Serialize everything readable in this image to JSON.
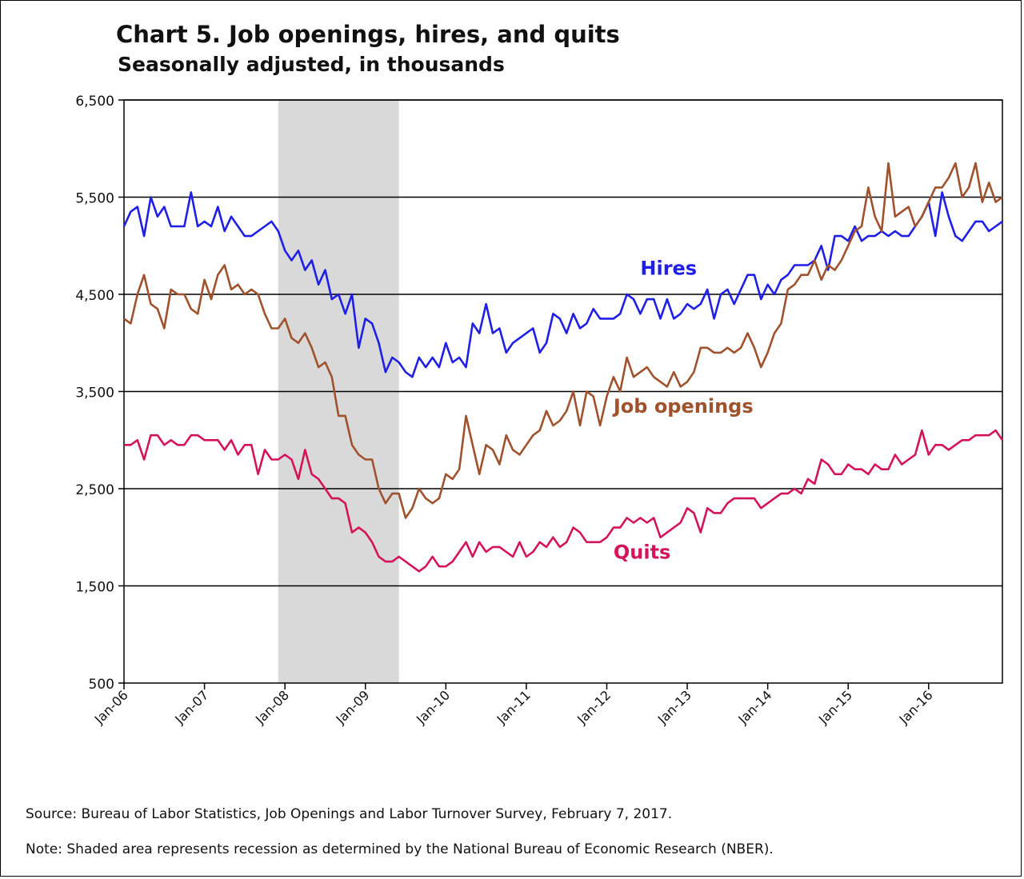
{
  "chart_data": {
    "type": "line",
    "title": "Chart 5. Job openings, hires, and quits",
    "subtitle": "Seasonally adjusted, in thousands",
    "xlabel": "",
    "ylabel": "",
    "x_start": "2006-01",
    "x_frequency": "monthly",
    "x_end": "2016-12",
    "x_tick_labels": [
      "Jan-06",
      "Jan-07",
      "Jan-08",
      "Jan-09",
      "Jan-10",
      "Jan-11",
      "Jan-12",
      "Jan-13",
      "Jan-14",
      "Jan-15",
      "Jan-16"
    ],
    "ylim": [
      500,
      6500
    ],
    "y_ticks": [
      500,
      1500,
      2500,
      3500,
      4500,
      5500,
      6500
    ],
    "y_tick_labels": [
      "500",
      "1,500",
      "2,500",
      "3,500",
      "4,500",
      "5,500",
      "6,500"
    ],
    "grid": "horizontal",
    "recession_shading": {
      "start": "2007-12",
      "end": "2009-06",
      "color": "#d9d9d9"
    },
    "series": [
      {
        "name": "Hires",
        "color": "#1f1fe6",
        "values": [
          5200,
          5350,
          5400,
          5100,
          5500,
          5300,
          5400,
          5200,
          5200,
          5200,
          5550,
          5200,
          5250,
          5200,
          5400,
          5150,
          5300,
          5200,
          5100,
          5100,
          5150,
          5200,
          5250,
          5150,
          4950,
          4850,
          4950,
          4750,
          4850,
          4600,
          4750,
          4450,
          4500,
          4300,
          4500,
          3950,
          4250,
          4200,
          4000,
          3700,
          3850,
          3800,
          3700,
          3650,
          3850,
          3750,
          3850,
          3750,
          4000,
          3800,
          3850,
          3750,
          4200,
          4100,
          4400,
          4100,
          4150,
          3900,
          4000,
          4050,
          4100,
          4150,
          3900,
          4000,
          4300,
          4250,
          4100,
          4300,
          4150,
          4200,
          4350,
          4250,
          4250,
          4250,
          4300,
          4500,
          4450,
          4300,
          4450,
          4450,
          4250,
          4450,
          4250,
          4300,
          4400,
          4350,
          4400,
          4550,
          4250,
          4500,
          4550,
          4400,
          4550,
          4700,
          4700,
          4450,
          4600,
          4500,
          4650,
          4700,
          4800,
          4800,
          4800,
          4850,
          5000,
          4750,
          5100,
          5100,
          5050,
          5200,
          5050,
          5100,
          5100,
          5150,
          5100,
          5150,
          5100,
          5100,
          5200,
          5300,
          5450,
          5100,
          5550,
          5300,
          5100,
          5050,
          5150,
          5250,
          5250,
          5150,
          5200,
          5250
        ]
      },
      {
        "name": "Job openings",
        "color": "#a0522d",
        "values": [
          4250,
          4200,
          4500,
          4700,
          4400,
          4350,
          4150,
          4550,
          4500,
          4500,
          4350,
          4300,
          4650,
          4450,
          4700,
          4800,
          4550,
          4600,
          4500,
          4550,
          4500,
          4300,
          4150,
          4150,
          4250,
          4050,
          4000,
          4100,
          3950,
          3750,
          3800,
          3650,
          3250,
          3250,
          2950,
          2850,
          2800,
          2800,
          2500,
          2350,
          2450,
          2450,
          2200,
          2300,
          2500,
          2400,
          2350,
          2400,
          2650,
          2600,
          2700,
          3250,
          2950,
          2650,
          2950,
          2900,
          2750,
          3050,
          2900,
          2850,
          2950,
          3050,
          3100,
          3300,
          3150,
          3200,
          3300,
          3500,
          3150,
          3500,
          3450,
          3150,
          3450,
          3650,
          3500,
          3850,
          3650,
          3700,
          3750,
          3650,
          3600,
          3550,
          3700,
          3550,
          3600,
          3700,
          3950,
          3950,
          3900,
          3900,
          3950,
          3900,
          3950,
          4100,
          3950,
          3750,
          3900,
          4100,
          4200,
          4550,
          4600,
          4700,
          4700,
          4850,
          4650,
          4800,
          4750,
          4850,
          5000,
          5150,
          5200,
          5600,
          5300,
          5150,
          5850,
          5300,
          5350,
          5400,
          5200,
          5300,
          5450,
          5600,
          5600,
          5700,
          5850,
          5500,
          5600,
          5850,
          5450,
          5650,
          5450,
          5500
        ]
      },
      {
        "name": "Quits",
        "color": "#d4145a",
        "values": [
          2950,
          2950,
          3000,
          2800,
          3050,
          3050,
          2950,
          3000,
          2950,
          2950,
          3050,
          3050,
          3000,
          3000,
          3000,
          2900,
          3000,
          2850,
          2950,
          2950,
          2650,
          2900,
          2800,
          2800,
          2850,
          2800,
          2600,
          2900,
          2650,
          2600,
          2500,
          2400,
          2400,
          2350,
          2050,
          2100,
          2050,
          1950,
          1800,
          1750,
          1750,
          1800,
          1750,
          1700,
          1650,
          1700,
          1800,
          1700,
          1700,
          1750,
          1850,
          1950,
          1800,
          1950,
          1850,
          1900,
          1900,
          1850,
          1800,
          1950,
          1800,
          1850,
          1950,
          1900,
          2000,
          1900,
          1950,
          2100,
          2050,
          1950,
          1950,
          1950,
          2000,
          2100,
          2100,
          2200,
          2150,
          2200,
          2150,
          2200,
          2000,
          2050,
          2100,
          2150,
          2300,
          2250,
          2050,
          2300,
          2250,
          2250,
          2350,
          2400,
          2400,
          2400,
          2400,
          2300,
          2350,
          2400,
          2450,
          2450,
          2500,
          2450,
          2600,
          2550,
          2800,
          2750,
          2650,
          2650,
          2750,
          2700,
          2700,
          2650,
          2750,
          2700,
          2700,
          2850,
          2750,
          2800,
          2850,
          3100,
          2850,
          2950,
          2950,
          2900,
          2950,
          3000,
          3000,
          3050,
          3050,
          3050,
          3100,
          3000
        ]
      }
    ],
    "series_labels": [
      {
        "name": "Hires",
        "anchor_date": "2012-06",
        "anchor_value": 4700
      },
      {
        "name": "Job openings",
        "anchor_date": "2012-02",
        "anchor_value": 3280
      },
      {
        "name": "Quits",
        "anchor_date": "2012-02",
        "anchor_value": 1780
      }
    ]
  },
  "footer": {
    "source": "Source: Bureau of Labor Statistics, Job Openings and Labor Turnover Survey, February 7, 2017.",
    "note": "Note: Shaded area represents recession as determined by the National Bureau of Economic Research (NBER)."
  }
}
